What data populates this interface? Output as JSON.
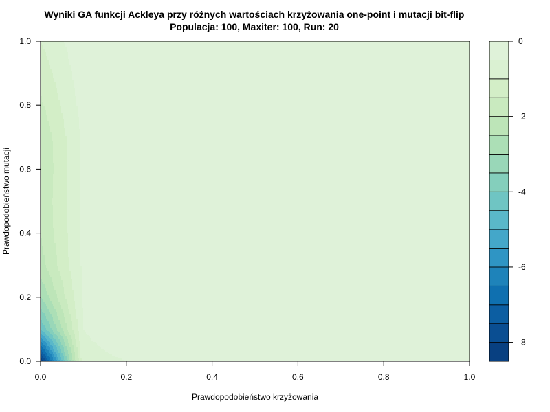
{
  "chart_data": {
    "type": "heatmap",
    "subtype": "filled-contour",
    "title": "Wyniki GA funkcji Ackleya przy różnych wartościach krzyżowania one-point i mutacji bit-flip",
    "subtitle": "Populacja: 100, Maxiter: 100, Run: 20",
    "xlabel": "Prawdopodobieństwo krzyżowania",
    "ylabel": "Prawdopodobieństwo mutacji",
    "xlim": [
      0,
      1
    ],
    "ylim": [
      0,
      1
    ],
    "x_ticks": [
      "0.0",
      "0.2",
      "0.4",
      "0.6",
      "0.8",
      "1.0"
    ],
    "y_ticks": [
      "0.0",
      "0.2",
      "0.4",
      "0.6",
      "0.8",
      "1.0"
    ],
    "grid": false,
    "x": [
      0.0,
      0.1,
      0.2,
      0.3,
      0.4,
      0.5,
      0.6,
      0.7,
      0.8,
      0.9,
      1.0
    ],
    "y": [
      0.0,
      0.1,
      0.2,
      0.3,
      0.4,
      0.5,
      0.6,
      0.7,
      0.8,
      0.9,
      1.0
    ],
    "z": [
      [
        -8.5,
        -0.6,
        -0.5,
        -0.3,
        -0.2,
        -0.1,
        -0.1,
        -0.1,
        -0.1,
        -0.1,
        -0.1
      ],
      [
        -4.5,
        -0.5,
        -0.3,
        -0.2,
        -0.1,
        -0.1,
        -0.1,
        -0.1,
        -0.1,
        -0.1,
        -0.1
      ],
      [
        -3.0,
        -0.4,
        -0.2,
        -0.1,
        -0.1,
        -0.1,
        -0.1,
        -0.1,
        -0.1,
        -0.1,
        -0.1
      ],
      [
        -2.2,
        -0.4,
        -0.2,
        -0.1,
        -0.1,
        -0.1,
        -0.1,
        -0.1,
        -0.1,
        -0.1,
        -0.1
      ],
      [
        -2.0,
        -0.4,
        -0.1,
        -0.1,
        -0.1,
        -0.1,
        -0.1,
        -0.1,
        -0.1,
        -0.1,
        -0.1
      ],
      [
        -1.9,
        -0.4,
        -0.1,
        -0.1,
        -0.1,
        -0.1,
        -0.1,
        -0.1,
        -0.1,
        -0.1,
        -0.1
      ],
      [
        -2.0,
        -0.4,
        -0.1,
        -0.1,
        -0.1,
        -0.1,
        -0.1,
        -0.1,
        -0.1,
        -0.1,
        -0.1
      ],
      [
        -1.9,
        -0.4,
        -0.1,
        -0.1,
        -0.1,
        -0.1,
        -0.1,
        -0.1,
        -0.1,
        -0.1,
        -0.1
      ],
      [
        -1.6,
        -0.3,
        -0.1,
        -0.1,
        -0.1,
        -0.1,
        -0.1,
        -0.1,
        -0.1,
        -0.1,
        -0.1
      ],
      [
        -1.3,
        -0.2,
        -0.1,
        -0.1,
        -0.1,
        -0.1,
        -0.1,
        -0.1,
        -0.1,
        -0.1,
        -0.1
      ],
      [
        -1.0,
        -0.1,
        -0.1,
        -0.1,
        -0.1,
        -0.1,
        -0.1,
        -0.1,
        -0.1,
        -0.1,
        -0.1
      ]
    ],
    "levels": [
      -8.5,
      -8.0,
      -7.5,
      -7.0,
      -6.5,
      -6.0,
      -5.5,
      -5.0,
      -4.5,
      -4.0,
      -3.5,
      -3.0,
      -2.5,
      -2.0,
      -1.5,
      -1.0,
      -0.5,
      0.0
    ],
    "colors": [
      "#084081",
      "#0a4e92",
      "#0c5ea2",
      "#0f70b0",
      "#1e83ba",
      "#2f95c4",
      "#44a7c9",
      "#5ab8c9",
      "#6fc5c3",
      "#84cfbc",
      "#99d7b8",
      "#acdfb6",
      "#bde5b8",
      "#c9eabf",
      "#d3eec7",
      "#daf1d2",
      "#dff2d9"
    ],
    "colorbar": {
      "ticks": [
        "0",
        "-2",
        "-4",
        "-6",
        "-8"
      ],
      "tick_values": [
        0,
        -2,
        -4,
        -6,
        -8
      ],
      "range": [
        -8.5,
        0
      ]
    }
  }
}
